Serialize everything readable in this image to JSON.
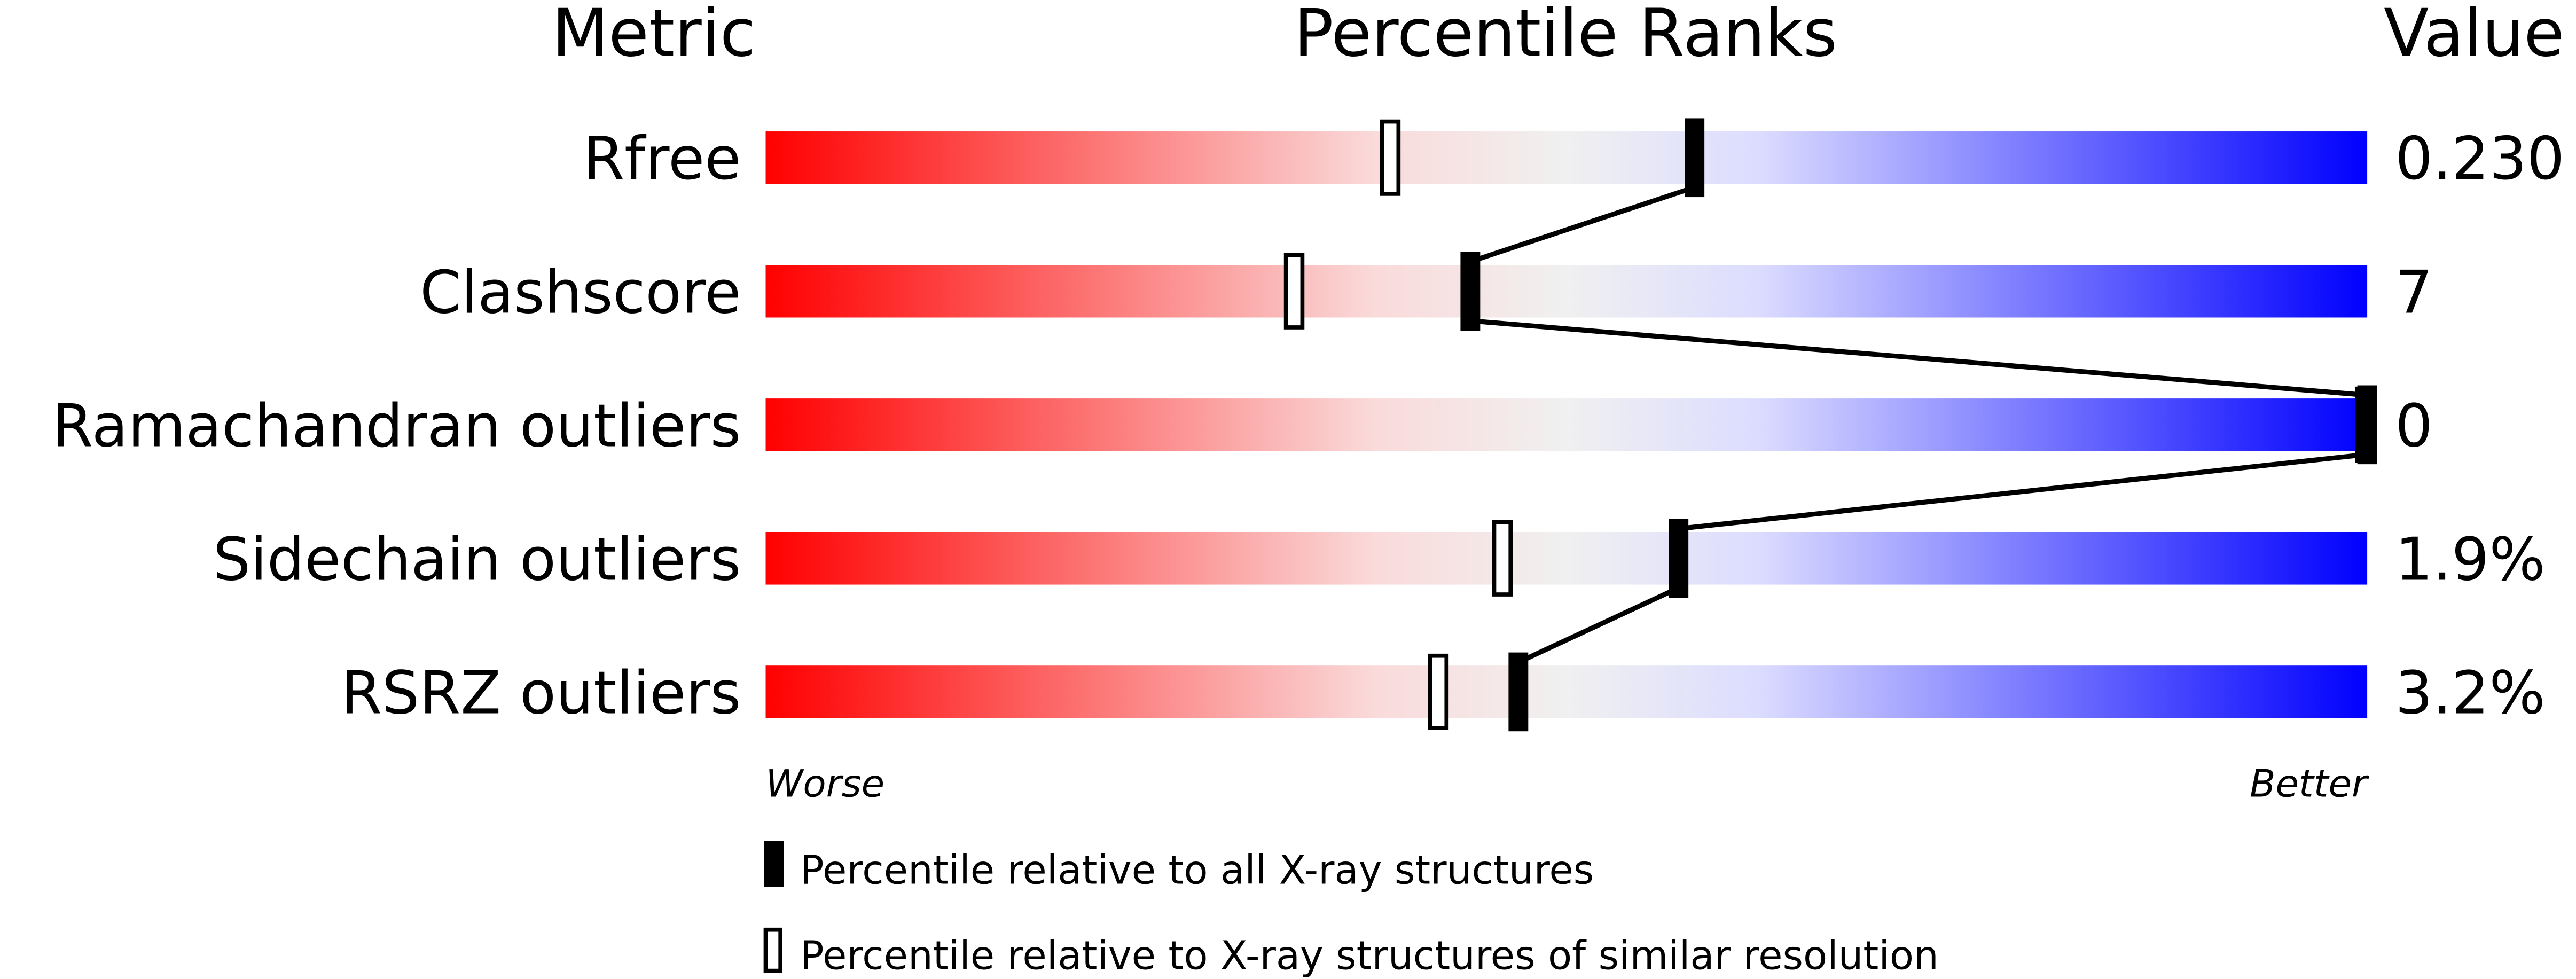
{
  "chart_data": {
    "type": "bar",
    "headers": {
      "metric": "Metric",
      "percentile": "Percentile Ranks",
      "value": "Value"
    },
    "xlim": [
      0,
      100
    ],
    "grid": false,
    "legend_placement": "bottom",
    "axis_labels": {
      "left": "Worse",
      "right": "Better"
    },
    "gradient_colors": [
      "#ff0000",
      "#fadada",
      "#f0f0f0",
      "#dcdcff",
      "#0000ff"
    ],
    "rows": [
      {
        "metric": "Rfree",
        "value": "0.230",
        "percentile_all": 58,
        "percentile_similar": 39
      },
      {
        "metric": "Clashscore",
        "value": "7",
        "percentile_all": 44,
        "percentile_similar": 33
      },
      {
        "metric": "Ramachandran outliers",
        "value": "0",
        "percentile_all": 100,
        "percentile_similar": 100
      },
      {
        "metric": "Sidechain outliers",
        "value": "1.9%",
        "percentile_all": 57,
        "percentile_similar": 46
      },
      {
        "metric": "RSRZ outliers",
        "value": "3.2%",
        "percentile_all": 47,
        "percentile_similar": 42
      }
    ],
    "legend": [
      {
        "marker": "filled",
        "label": "Percentile relative to all X-ray structures"
      },
      {
        "marker": "open",
        "label": "Percentile relative to X-ray structures of similar resolution"
      }
    ]
  }
}
